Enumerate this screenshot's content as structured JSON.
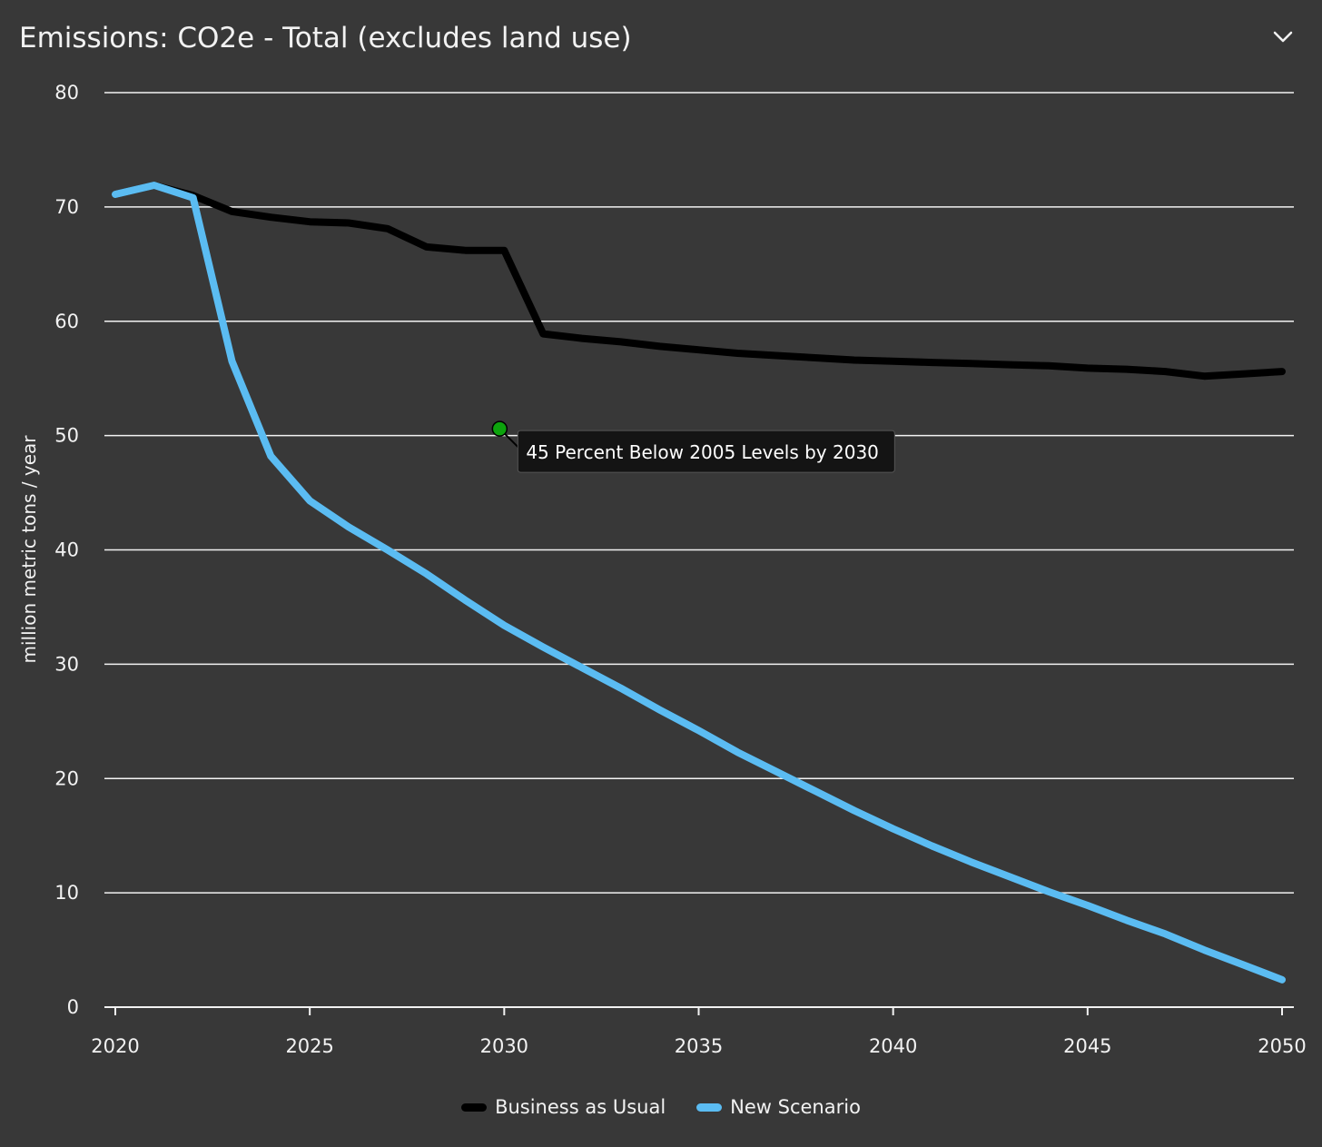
{
  "header": {
    "title": "Emissions: CO2e - Total (excludes land use)",
    "menu_icon": "chevron-down-icon"
  },
  "colors": {
    "background": "#383838",
    "grid": "#f2f2f2",
    "text": "#f2f2f2",
    "business_as_usual": "#000000",
    "new_scenario": "#5bbcf2",
    "annotation_marker": "#0da30d",
    "annotation_bg": "#141414"
  },
  "chart_data": {
    "type": "line",
    "title": "Emissions: CO2e - Total (excludes land use)",
    "xlabel": "",
    "ylabel": "million metric tons / year",
    "xlim": [
      2020,
      2050
    ],
    "ylim": [
      0,
      80
    ],
    "x_ticks": [
      2020,
      2025,
      2030,
      2035,
      2040,
      2045,
      2050
    ],
    "y_ticks": [
      0,
      10,
      20,
      30,
      40,
      50,
      60,
      70,
      80
    ],
    "grid": "horizontal",
    "legend_position": "bottom-center",
    "series": [
      {
        "name": "Business as Usual",
        "color": "#000000",
        "points": [
          [
            2020,
            71.1
          ],
          [
            2021,
            71.9
          ],
          [
            2022,
            71.0
          ],
          [
            2023,
            69.6
          ],
          [
            2024,
            69.1
          ],
          [
            2025,
            68.7
          ],
          [
            2026,
            68.6
          ],
          [
            2027,
            68.1
          ],
          [
            2028,
            66.5
          ],
          [
            2029,
            66.2
          ],
          [
            2030,
            66.2
          ],
          [
            2031,
            58.9
          ],
          [
            2032,
            58.5
          ],
          [
            2033,
            58.2
          ],
          [
            2034,
            57.8
          ],
          [
            2035,
            57.5
          ],
          [
            2036,
            57.2
          ],
          [
            2037,
            57.0
          ],
          [
            2038,
            56.8
          ],
          [
            2039,
            56.6
          ],
          [
            2040,
            56.5
          ],
          [
            2041,
            56.4
          ],
          [
            2042,
            56.3
          ],
          [
            2043,
            56.2
          ],
          [
            2044,
            56.1
          ],
          [
            2045,
            55.9
          ],
          [
            2046,
            55.8
          ],
          [
            2047,
            55.6
          ],
          [
            2048,
            55.2
          ],
          [
            2049,
            55.4
          ],
          [
            2050,
            55.6
          ]
        ]
      },
      {
        "name": "New Scenario",
        "color": "#5bbcf2",
        "points": [
          [
            2020,
            71.1
          ],
          [
            2021,
            71.9
          ],
          [
            2022,
            70.8
          ],
          [
            2023,
            56.5
          ],
          [
            2024,
            48.2
          ],
          [
            2025,
            44.3
          ],
          [
            2026,
            42.0
          ],
          [
            2027,
            40.0
          ],
          [
            2028,
            37.9
          ],
          [
            2029,
            35.6
          ],
          [
            2030,
            33.4
          ],
          [
            2031,
            31.5
          ],
          [
            2032,
            29.7
          ],
          [
            2033,
            27.9
          ],
          [
            2034,
            26.0
          ],
          [
            2035,
            24.2
          ],
          [
            2036,
            22.3
          ],
          [
            2037,
            20.6
          ],
          [
            2038,
            18.9
          ],
          [
            2039,
            17.2
          ],
          [
            2040,
            15.6
          ],
          [
            2041,
            14.1
          ],
          [
            2042,
            12.7
          ],
          [
            2043,
            11.4
          ],
          [
            2044,
            10.1
          ],
          [
            2045,
            8.9
          ],
          [
            2046,
            7.6
          ],
          [
            2047,
            6.4
          ],
          [
            2048,
            5.0
          ],
          [
            2049,
            3.7
          ],
          [
            2050,
            2.4
          ]
        ]
      }
    ],
    "annotations": [
      {
        "label": "45 Percent Below 2005 Levels by 2030",
        "x": 2030,
        "y": 50.6
      }
    ]
  }
}
